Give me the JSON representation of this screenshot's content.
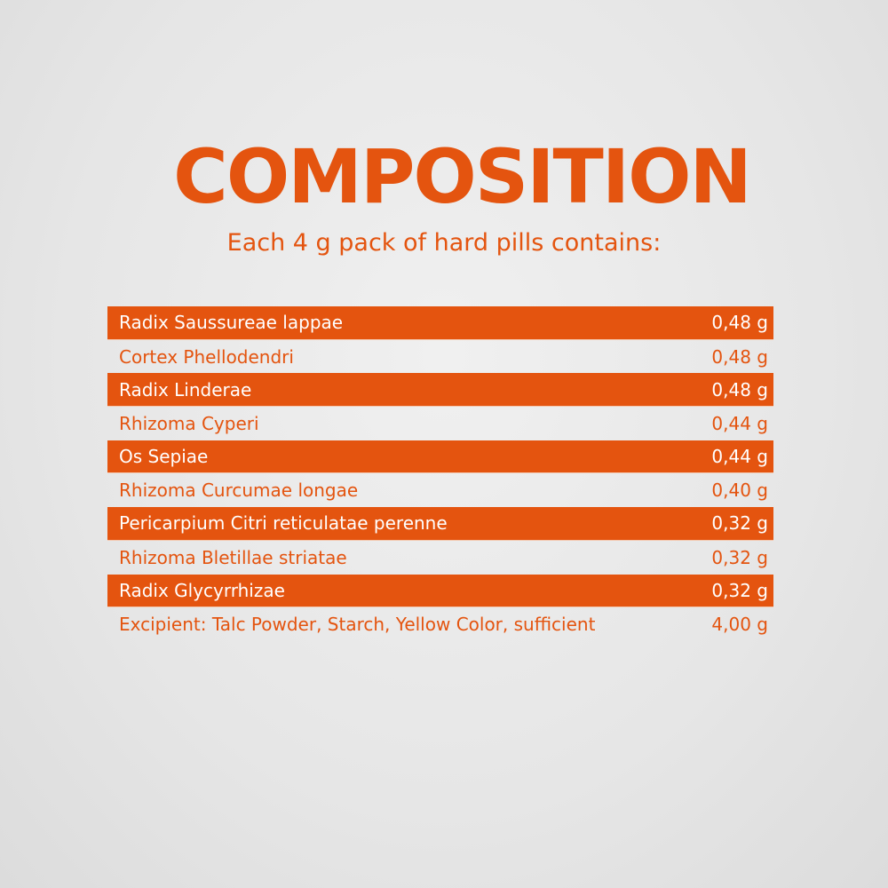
{
  "title": "COMPOSITION",
  "subtitle": "Each 4 g pack of hard pills contains:",
  "colors": {
    "accent": "#e4540f",
    "highlight_text": "#ffffff"
  },
  "ingredients": [
    {
      "name": "Radix Saussureae lappae",
      "amount": "0,48 g",
      "highlighted": true
    },
    {
      "name": "Cortex Phellodendri",
      "amount": "0,48 g",
      "highlighted": false
    },
    {
      "name": "Radix Linderae",
      "amount": "0,48 g",
      "highlighted": true
    },
    {
      "name": "Rhizoma Cyperi",
      "amount": "0,44 g",
      "highlighted": false
    },
    {
      "name": "Os Sepiae",
      "amount": "0,44 g",
      "highlighted": true
    },
    {
      "name": "Rhizoma Curcumae longae",
      "amount": "0,40 g",
      "highlighted": false
    },
    {
      "name": "Pericarpium Citri reticulatae perenne",
      "amount": "0,32 g",
      "highlighted": true
    },
    {
      "name": "Rhizoma Bletillae striatae",
      "amount": "0,32 g",
      "highlighted": false
    },
    {
      "name": "Radix Glycyrrhizae",
      "amount": "0,32 g",
      "highlighted": true
    },
    {
      "name": "Excipient: Talc Powder, Starch, Yellow Color, sufficient",
      "amount": "4,00 g",
      "highlighted": false
    }
  ]
}
